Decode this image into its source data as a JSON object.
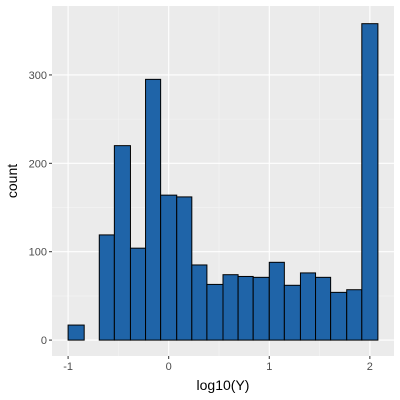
{
  "chart_data": {
    "type": "bar",
    "histogram": true,
    "xlabel": "log10(Y)",
    "ylabel": "count",
    "x_ticks": [
      -1,
      0,
      1,
      2
    ],
    "x_tick_labels": [
      "-1",
      "0",
      "1",
      "2"
    ],
    "y_ticks": [
      0,
      100,
      200,
      300
    ],
    "y_tick_labels": [
      "0",
      "100",
      "200",
      "300"
    ],
    "xlim": [
      -1.16,
      2.24
    ],
    "ylim": [
      -18,
      378
    ],
    "grid": true,
    "bins": [
      {
        "x0": -1.0,
        "x1": -0.84,
        "count": 17
      },
      {
        "x0": -0.84,
        "x1": -0.69,
        "count": 0
      },
      {
        "x0": -0.69,
        "x1": -0.54,
        "count": 119
      },
      {
        "x0": -0.54,
        "x1": -0.38,
        "count": 220
      },
      {
        "x0": -0.38,
        "x1": -0.23,
        "count": 104
      },
      {
        "x0": -0.23,
        "x1": -0.08,
        "count": 295
      },
      {
        "x0": -0.08,
        "x1": 0.08,
        "count": 164
      },
      {
        "x0": 0.08,
        "x1": 0.23,
        "count": 162
      },
      {
        "x0": 0.23,
        "x1": 0.38,
        "count": 85
      },
      {
        "x0": 0.38,
        "x1": 0.54,
        "count": 63
      },
      {
        "x0": 0.54,
        "x1": 0.69,
        "count": 74
      },
      {
        "x0": 0.69,
        "x1": 0.84,
        "count": 72
      },
      {
        "x0": 0.84,
        "x1": 1.0,
        "count": 71
      },
      {
        "x0": 1.0,
        "x1": 1.15,
        "count": 88
      },
      {
        "x0": 1.15,
        "x1": 1.31,
        "count": 62
      },
      {
        "x0": 1.31,
        "x1": 1.46,
        "count": 76
      },
      {
        "x0": 1.46,
        "x1": 1.61,
        "count": 71
      },
      {
        "x0": 1.61,
        "x1": 1.77,
        "count": 54
      },
      {
        "x0": 1.77,
        "x1": 1.92,
        "count": 57
      },
      {
        "x0": 1.92,
        "x1": 2.08,
        "count": 358
      }
    ],
    "colors": {
      "bar_fill": "#1f64a8",
      "bar_stroke": "#000000",
      "panel_bg": "#ebebeb",
      "grid_major": "#ffffff",
      "grid_minor": "#f5f5f5",
      "tick_text": "#4d4d4d"
    }
  }
}
